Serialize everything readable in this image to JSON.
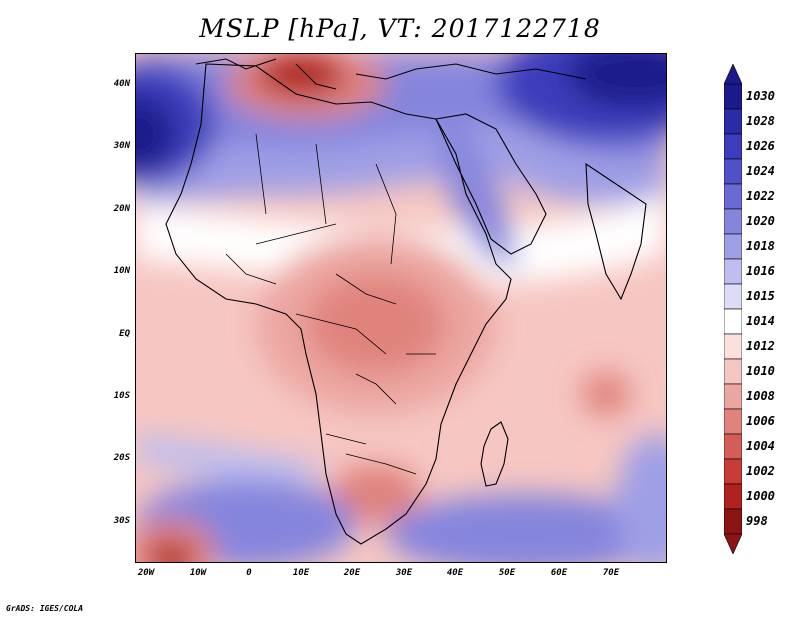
{
  "title": "MSLP [hPa], VT: 2017122718",
  "credit": "GrADS: IGES/COLA",
  "y_axis": [
    "40N",
    "30N",
    "20N",
    "10N",
    "EQ",
    "10S",
    "20S",
    "30S"
  ],
  "x_axis": [
    "20W",
    "10W",
    "0",
    "10E",
    "20E",
    "30E",
    "40E",
    "50E",
    "60E",
    "70E"
  ],
  "colorbar": {
    "labels": [
      "1030",
      "1028",
      "1026",
      "1024",
      "1022",
      "1020",
      "1018",
      "1016",
      "1015",
      "1014",
      "1012",
      "1010",
      "1008",
      "1006",
      "1004",
      "1002",
      "1000",
      "998"
    ],
    "colors": [
      "#1a1a8c",
      "#2b2ba8",
      "#3c3cbc",
      "#5050c8",
      "#6a6ad4",
      "#8585dd",
      "#9f9fe6",
      "#bdbdef",
      "#dcdcf6",
      "#ffffff",
      "#fbe0de",
      "#f6c6c2",
      "#eca6a1",
      "#e0837d",
      "#d45d57",
      "#c63b36",
      "#b0221f",
      "#8c1414"
    ]
  },
  "palette": {
    "land_outline": "#000000",
    "high": "#2b2ba8",
    "low": "#b0221f",
    "neutral": "#ffffff"
  }
}
